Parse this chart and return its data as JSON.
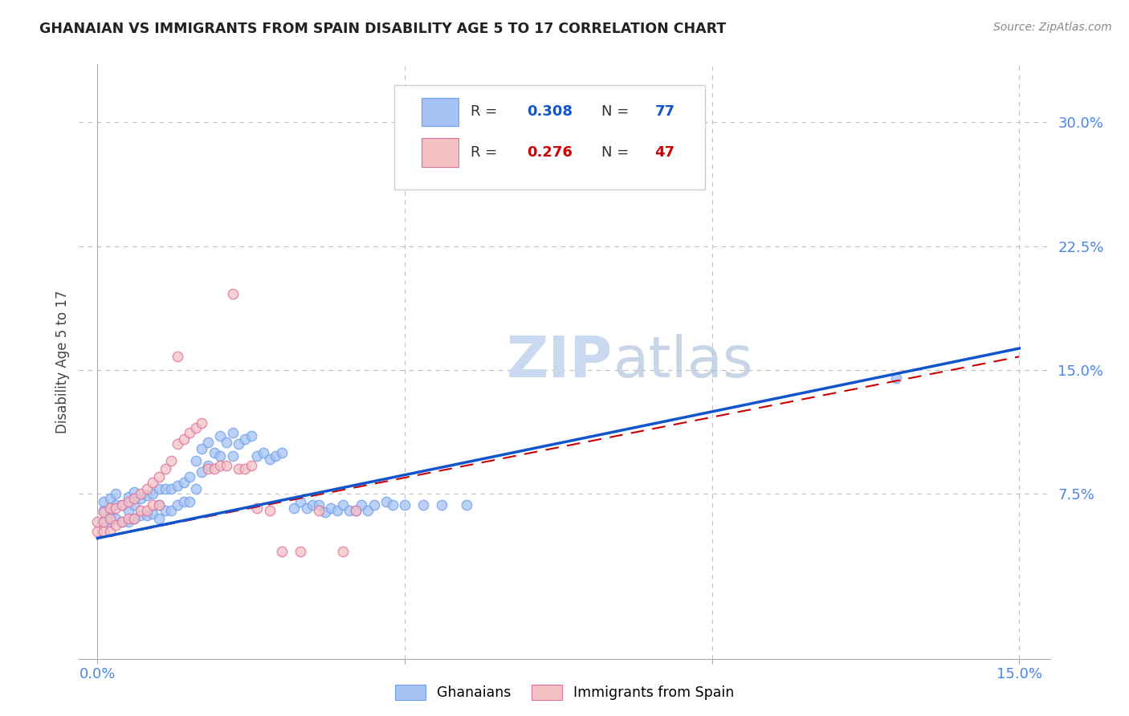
{
  "title": "GHANAIAN VS IMMIGRANTS FROM SPAIN DISABILITY AGE 5 TO 17 CORRELATION CHART",
  "source": "Source: ZipAtlas.com",
  "ylabel": "Disability Age 5 to 17",
  "xlim": [
    -0.003,
    0.155
  ],
  "ylim": [
    -0.025,
    0.335
  ],
  "xticks": [
    0.0,
    0.05,
    0.1,
    0.15
  ],
  "xticklabels": [
    "0.0%",
    "",
    "",
    "15.0%"
  ],
  "yticks_right": [
    0.075,
    0.15,
    0.225,
    0.3
  ],
  "yticklabels_right": [
    "7.5%",
    "15.0%",
    "22.5%",
    "30.0%"
  ],
  "blue_scatter_x": [
    0.0,
    0.001,
    0.001,
    0.001,
    0.002,
    0.002,
    0.002,
    0.003,
    0.003,
    0.003,
    0.004,
    0.004,
    0.004,
    0.005,
    0.005,
    0.005,
    0.006,
    0.006,
    0.006,
    0.007,
    0.007,
    0.007,
    0.008,
    0.008,
    0.009,
    0.009,
    0.009,
    0.01,
    0.01,
    0.01,
    0.011,
    0.011,
    0.012,
    0.012,
    0.013,
    0.013,
    0.014,
    0.014,
    0.015,
    0.016,
    0.016,
    0.017,
    0.018,
    0.019,
    0.02,
    0.021,
    0.022,
    0.023,
    0.024,
    0.025,
    0.026,
    0.027,
    0.028,
    0.029,
    0.03,
    0.032,
    0.033,
    0.035,
    0.036,
    0.037,
    0.038,
    0.039,
    0.04,
    0.041,
    0.043,
    0.044,
    0.045,
    0.047,
    0.048,
    0.05,
    0.052,
    0.054,
    0.056,
    0.058,
    0.06,
    0.062,
    0.13
  ],
  "blue_scatter_y": [
    0.055,
    0.06,
    0.065,
    0.07,
    0.055,
    0.065,
    0.07,
    0.06,
    0.07,
    0.075,
    0.055,
    0.06,
    0.07,
    0.058,
    0.065,
    0.07,
    0.055,
    0.065,
    0.075,
    0.06,
    0.068,
    0.075,
    0.065,
    0.075,
    0.06,
    0.068,
    0.078,
    0.065,
    0.075,
    0.08,
    0.07,
    0.08,
    0.07,
    0.08,
    0.075,
    0.085,
    0.075,
    0.085,
    0.09,
    0.09,
    0.1,
    0.1,
    0.095,
    0.095,
    0.1,
    0.1,
    0.105,
    0.105,
    0.11,
    0.11,
    0.09,
    0.095,
    0.09,
    0.09,
    0.095,
    0.065,
    0.07,
    0.065,
    0.065,
    0.065,
    0.065,
    0.065,
    0.065,
    0.065,
    0.065,
    0.065,
    0.07,
    0.07,
    0.07,
    0.065,
    0.065,
    0.065,
    0.065,
    0.065,
    0.065,
    0.065,
    0.145
  ],
  "pink_scatter_x": [
    0.0,
    0.0,
    0.0,
    0.001,
    0.001,
    0.001,
    0.002,
    0.002,
    0.002,
    0.003,
    0.003,
    0.003,
    0.004,
    0.004,
    0.005,
    0.005,
    0.006,
    0.006,
    0.007,
    0.007,
    0.008,
    0.008,
    0.009,
    0.009,
    0.01,
    0.01,
    0.011,
    0.012,
    0.013,
    0.014,
    0.015,
    0.016,
    0.017,
    0.018,
    0.019,
    0.02,
    0.021,
    0.022,
    0.024,
    0.025,
    0.026,
    0.028,
    0.03,
    0.033,
    0.036,
    0.042,
    0.042
  ],
  "pink_scatter_y": [
    0.05,
    0.055,
    0.06,
    0.05,
    0.055,
    0.065,
    0.05,
    0.06,
    0.065,
    0.055,
    0.065,
    0.07,
    0.055,
    0.065,
    0.06,
    0.07,
    0.06,
    0.07,
    0.065,
    0.075,
    0.065,
    0.075,
    0.07,
    0.08,
    0.065,
    0.08,
    0.085,
    0.09,
    0.1,
    0.105,
    0.105,
    0.11,
    0.115,
    0.09,
    0.09,
    0.09,
    0.09,
    0.195,
    0.09,
    0.09,
    0.065,
    0.065,
    0.04,
    0.04,
    0.065,
    0.04,
    0.065
  ],
  "blue_line_x0": 0.0,
  "blue_line_y0": 0.048,
  "blue_line_x1": 0.15,
  "blue_line_y1": 0.163,
  "pink_line_x0": 0.0,
  "pink_line_y0": 0.048,
  "pink_line_x1": 0.15,
  "pink_line_y1": 0.158,
  "blue_circle_color": "#a4c2f4",
  "blue_edge_color": "#6d9eeb",
  "pink_circle_color": "#f4c2c2",
  "pink_edge_color": "#e06c9f",
  "blue_line_color": "#1155cc",
  "pink_line_color": "#cc0000",
  "tick_color": "#4a86e8",
  "watermark_color": "#c9d9f0",
  "grid_color": "#c0c0c0",
  "legend_blue_face": "#a4c2f4",
  "legend_pink_face": "#f4c2c2",
  "r_n_color": "#1155cc",
  "r_value_color_blue": "#1155cc",
  "r_value_color_pink": "#cc0000"
}
